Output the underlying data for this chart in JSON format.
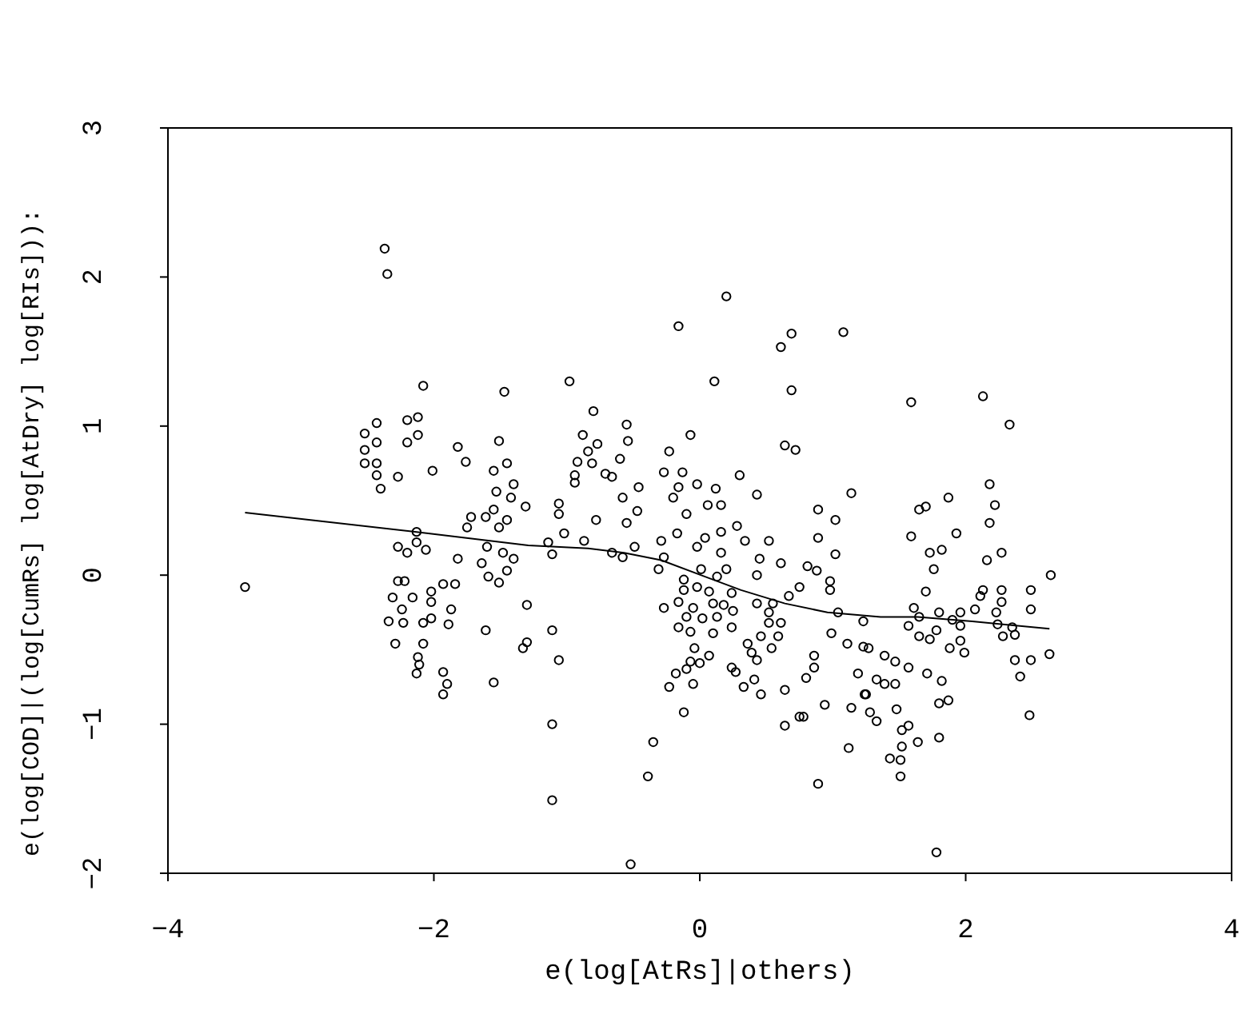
{
  "chart_data": {
    "type": "scatter",
    "xlabel": "e(log[AtRs]|others)",
    "ylabel": "e(log[COD]|(log[CumRs] log[AtDry] log[RIs])):",
    "xlim": [
      -4,
      4
    ],
    "ylim": [
      -2,
      3
    ],
    "xticks": [
      -4,
      -2,
      0,
      2,
      4
    ],
    "yticks": [
      -2,
      -1,
      0,
      1,
      2,
      3
    ],
    "grid": false,
    "marker": "circle",
    "series": [
      {
        "color": "#000000",
        "x": [
          -2.37,
          -2.35,
          -3.42,
          -2.08,
          -1.47,
          -2.43,
          -2.2,
          -2.12,
          -2.52,
          -2.43,
          -2.2,
          -2.12,
          -2.52,
          -1.82,
          -1.76,
          -2.52,
          -2.43,
          -2.01,
          -2.27,
          -2.43,
          -2.4,
          -1.51,
          -1.45,
          -1.55,
          -1.4,
          -1.53,
          -1.42,
          -1.31,
          -1.55,
          -1.72,
          -1.61,
          -1.75,
          -1.45,
          -1.51,
          -2.13,
          -2.27,
          -2.13,
          -2.2,
          -2.06,
          -1.82,
          -1.6,
          -1.48,
          -1.4,
          -1.64,
          -1.59,
          -1.45,
          -1.51,
          -2.27,
          -2.22,
          -1.93,
          -1.84,
          -2.31,
          -2.16,
          -2.02,
          -2.02,
          -2.24,
          -1.87,
          -1.3,
          -2.34,
          -2.23,
          -2.08,
          -2.02,
          -1.89,
          -1.61,
          -2.29,
          -2.08,
          -1.3,
          -1.33,
          -2.12,
          -2.11,
          -2.13,
          -1.93,
          -1.9,
          -1.93,
          -1.55,
          0.2,
          -0.16,
          0.69,
          0.61,
          1.08,
          -0.98,
          0.11,
          0.69,
          -0.8,
          -0.55,
          -0.88,
          -0.77,
          -0.54,
          -0.07,
          -0.84,
          -0.92,
          -0.81,
          -0.6,
          -0.23,
          0.64,
          0.72,
          -0.94,
          -0.94,
          -0.71,
          -0.66,
          -0.27,
          -0.13,
          0.3,
          -0.46,
          -0.16,
          -0.02,
          0.12,
          -0.58,
          -0.2,
          0.43,
          1.14,
          -1.06,
          -1.06,
          -0.47,
          -0.1,
          0.06,
          0.16,
          0.89,
          1.02,
          -0.78,
          -0.55,
          0.28,
          -1.02,
          -0.17,
          0.16,
          -0.29,
          0.04,
          0.34,
          0.52,
          0.89,
          -1.14,
          -0.87,
          -0.49,
          -0.02,
          -1.11,
          -0.66,
          -0.58,
          -0.27,
          0.16,
          0.45,
          0.61,
          1.02,
          -0.31,
          0.01,
          0.2,
          0.81,
          0.88,
          0.43,
          0.75,
          0.98,
          0.98,
          -0.12,
          0.13,
          -0.12,
          -0.02,
          0.07,
          0.24,
          -0.27,
          -0.16,
          -0.05,
          0.1,
          0.18,
          0.25,
          0.43,
          0.55,
          0.67,
          -0.1,
          0.02,
          0.13,
          0.52,
          -0.16,
          -0.07,
          0.1,
          0.24,
          0.52,
          0.61,
          1.04,
          1.23,
          0.99,
          0.36,
          0.46,
          0.59,
          -0.04,
          0.39,
          0.54,
          1.11,
          1.23,
          0.07,
          0.86,
          0.43,
          -0.07,
          0,
          -0.1,
          0.24,
          0.86,
          -0.18,
          -0.05,
          0.27,
          0.41,
          0.8,
          1.19,
          -0.23,
          0.33,
          0.46,
          0.64,
          1.24,
          -0.12,
          0.94,
          1.14,
          0.64,
          0.75,
          0.78,
          -1.11,
          -1.06,
          -1.11,
          -0.35,
          -0.39,
          -1.11,
          1.12,
          0.89,
          -0.52,
          1.59,
          2.13,
          2.33,
          2.18,
          2.22,
          1.87,
          1.65,
          1.7,
          2.18,
          1.59,
          1.93,
          1.73,
          1.82,
          2.16,
          2.27,
          1.76,
          2.64,
          1.7,
          2.13,
          2.27,
          2.49,
          2.11,
          2.27,
          1.61,
          1.8,
          1.96,
          2.07,
          2.23,
          2.49,
          1.65,
          1.9,
          1.57,
          1.78,
          1.96,
          2.24,
          2.35,
          2.28,
          2.37,
          1.65,
          1.73,
          1.96,
          1.88,
          1.99,
          1.27,
          2.63,
          1.39,
          1.47,
          1.57,
          1.71,
          1.82,
          2.37,
          2.49,
          2.41,
          1.33,
          1.39,
          1.47,
          1.25,
          1.28,
          1.33,
          1.48,
          1.8,
          1.87,
          2.48,
          1.52,
          1.57,
          1.64,
          1.8,
          1.52,
          1.43,
          1.51,
          1.51,
          1.78
        ],
        "values": [
          2.19,
          2.02,
          -0.08,
          1.27,
          1.23,
          1.02,
          1.04,
          1.06,
          0.95,
          0.89,
          0.89,
          0.94,
          0.84,
          0.86,
          0.76,
          0.75,
          0.75,
          0.7,
          0.66,
          0.67,
          0.58,
          0.9,
          0.75,
          0.7,
          0.61,
          0.56,
          0.52,
          0.46,
          0.44,
          0.39,
          0.39,
          0.32,
          0.37,
          0.32,
          0.29,
          0.19,
          0.22,
          0.15,
          0.17,
          0.11,
          0.19,
          0.15,
          0.11,
          0.08,
          -0.01,
          0.03,
          -0.05,
          -0.04,
          -0.04,
          -0.06,
          -0.06,
          -0.15,
          -0.15,
          -0.11,
          -0.18,
          -0.23,
          -0.23,
          -0.2,
          -0.31,
          -0.32,
          -0.32,
          -0.29,
          -0.33,
          -0.37,
          -0.46,
          -0.46,
          -0.45,
          -0.49,
          -0.55,
          -0.6,
          -0.66,
          -0.65,
          -0.73,
          -0.8,
          -0.72,
          1.87,
          1.67,
          1.62,
          1.53,
          1.63,
          1.3,
          1.3,
          1.24,
          1.1,
          1.01,
          0.94,
          0.88,
          0.9,
          0.94,
          0.83,
          0.76,
          0.75,
          0.78,
          0.83,
          0.87,
          0.84,
          0.67,
          0.62,
          0.68,
          0.66,
          0.69,
          0.69,
          0.67,
          0.59,
          0.59,
          0.61,
          0.58,
          0.52,
          0.52,
          0.54,
          0.55,
          0.48,
          0.41,
          0.43,
          0.41,
          0.47,
          0.47,
          0.44,
          0.37,
          0.37,
          0.35,
          0.33,
          0.28,
          0.28,
          0.29,
          0.23,
          0.25,
          0.23,
          0.23,
          0.25,
          0.22,
          0.23,
          0.19,
          0.19,
          0.14,
          0.15,
          0.12,
          0.12,
          0.15,
          0.11,
          0.08,
          0.14,
          0.04,
          0.04,
          0.04,
          0.06,
          0.03,
          0,
          -0.08,
          -0.04,
          -0.1,
          -0.03,
          -0.01,
          -0.1,
          -0.08,
          -0.11,
          -0.12,
          -0.22,
          -0.18,
          -0.22,
          -0.19,
          -0.2,
          -0.24,
          -0.19,
          -0.19,
          -0.14,
          -0.28,
          -0.29,
          -0.28,
          -0.25,
          -0.35,
          -0.38,
          -0.39,
          -0.35,
          -0.32,
          -0.32,
          -0.25,
          -0.31,
          -0.39,
          -0.46,
          -0.41,
          -0.41,
          -0.49,
          -0.52,
          -0.49,
          -0.46,
          -0.48,
          -0.54,
          -0.54,
          -0.57,
          -0.58,
          -0.59,
          -0.63,
          -0.62,
          -0.62,
          -0.66,
          -0.73,
          -0.65,
          -0.7,
          -0.69,
          -0.66,
          -0.75,
          -0.75,
          -0.8,
          -0.77,
          -0.8,
          -0.92,
          -0.87,
          -0.89,
          -1.01,
          -0.95,
          -0.95,
          -0.37,
          -0.57,
          -1,
          -1.12,
          -1.35,
          -1.51,
          -1.16,
          -1.4,
          -1.94,
          1.16,
          1.2,
          1.01,
          0.61,
          0.47,
          0.52,
          0.44,
          0.46,
          0.35,
          0.26,
          0.28,
          0.15,
          0.17,
          0.1,
          0.15,
          0.04,
          0,
          -0.11,
          -0.1,
          -0.1,
          -0.1,
          -0.14,
          -0.18,
          -0.22,
          -0.25,
          -0.25,
          -0.23,
          -0.25,
          -0.23,
          -0.28,
          -0.3,
          -0.34,
          -0.37,
          -0.34,
          -0.33,
          -0.35,
          -0.41,
          -0.4,
          -0.41,
          -0.43,
          -0.44,
          -0.49,
          -0.52,
          -0.49,
          -0.53,
          -0.54,
          -0.58,
          -0.62,
          -0.66,
          -0.71,
          -0.57,
          -0.57,
          -0.68,
          -0.7,
          -0.73,
          -0.73,
          -0.8,
          -0.92,
          -0.98,
          -0.9,
          -0.86,
          -0.84,
          -0.94,
          -1.04,
          -1.01,
          -1.12,
          -1.09,
          -1.15,
          -1.23,
          -1.24,
          -1.35,
          -1.86
        ]
      },
      {
        "type": "line",
        "color": "#000000",
        "marker": "none",
        "x": [
          -3.42,
          -2.13,
          -1.29,
          -0.84,
          -0.57,
          -0.29,
          0.04,
          0.31,
          0.64,
          0.96,
          1.36,
          1.64,
          2.05,
          2.63
        ],
        "values": [
          0.42,
          0.29,
          0.2,
          0.18,
          0.15,
          0.1,
          -0.01,
          -0.1,
          -0.19,
          -0.25,
          -0.28,
          -0.28,
          -0.31,
          -0.36
        ]
      }
    ]
  }
}
